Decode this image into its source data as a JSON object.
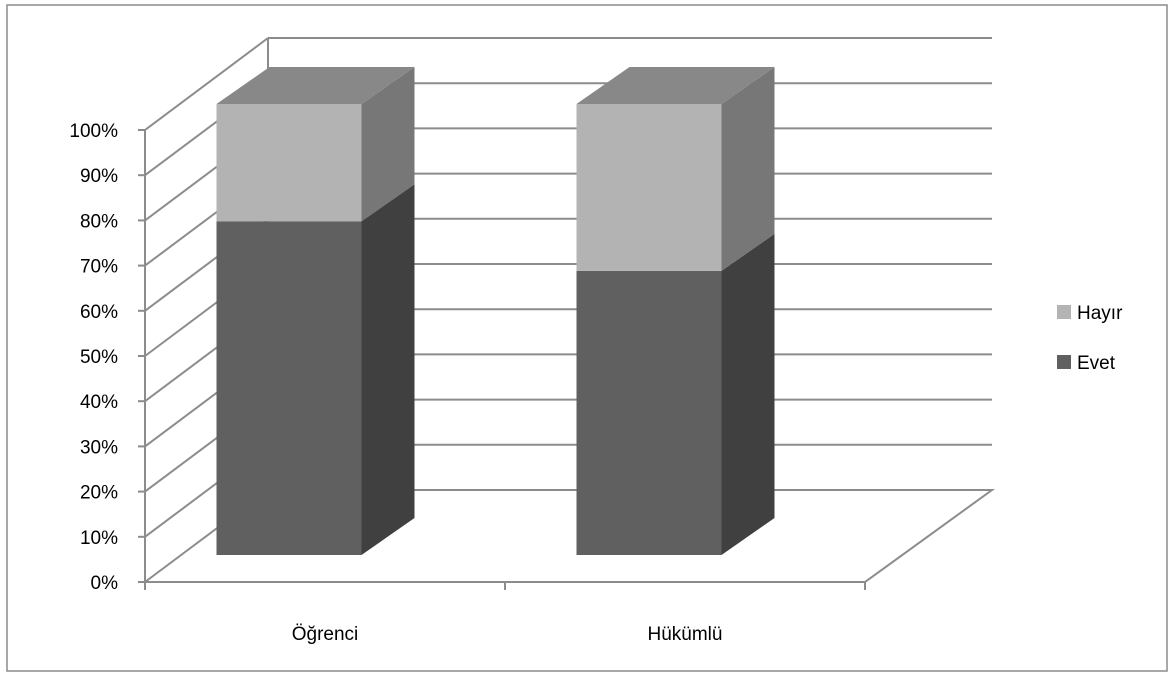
{
  "chart_data": {
    "type": "bar",
    "stacked": true,
    "percent_stacked": true,
    "three_d": true,
    "categories": [
      "Öğrenci",
      "Hükümlü"
    ],
    "series": [
      {
        "name": "Evet",
        "values": [
          74,
          63
        ],
        "color": "#606060",
        "side_color": "#404040"
      },
      {
        "name": "Hayır",
        "values": [
          26,
          37
        ],
        "color": "#B3B3B3",
        "side_color": "#777777"
      }
    ],
    "top_color": "#888888",
    "ylim": [
      0,
      100
    ],
    "yticks": [
      "0%",
      "10%",
      "20%",
      "30%",
      "40%",
      "50%",
      "60%",
      "70%",
      "80%",
      "90%",
      "100%"
    ],
    "title": "",
    "xlabel": "",
    "ylabel": "",
    "grid": true,
    "legend_position": "right",
    "legend_order": [
      "Hayır",
      "Evet"
    ]
  }
}
